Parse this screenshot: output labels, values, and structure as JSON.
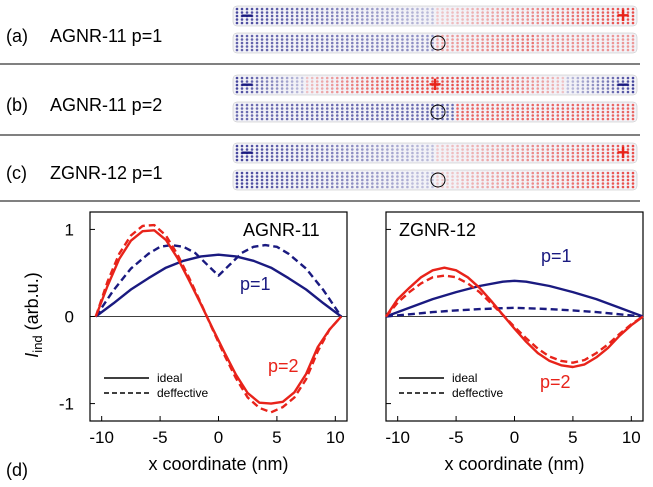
{
  "panels": [
    {
      "tag": "(a)",
      "name": "AGNR-11 p=1",
      "ribbon1": {
        "profile": "antisym",
        "signs": [
          {
            "text": "−",
            "color": "#1a1a80",
            "side": "left"
          },
          {
            "text": "+",
            "color": "#e8231a",
            "side": "right"
          }
        ]
      },
      "ribbon2": {
        "profile": "ring",
        "marker": "circle"
      }
    },
    {
      "tag": "(b)",
      "name": "AGNR-11 p=2",
      "ribbon1": {
        "profile": "sym",
        "signs": [
          {
            "text": "−",
            "color": "#1a1a80",
            "side": "left"
          },
          {
            "text": "+",
            "color": "#e8231a",
            "side": "center"
          },
          {
            "text": "−",
            "color": "#1a1a80",
            "side": "right"
          }
        ]
      },
      "ribbon2": {
        "profile": "half",
        "marker": "circle"
      }
    },
    {
      "tag": "(c)",
      "name": "ZGNR-12 p=1",
      "ribbon1": {
        "profile": "antisym",
        "signs": [
          {
            "text": "−",
            "color": "#1a1a80",
            "side": "left"
          },
          {
            "text": "+",
            "color": "#e8231a",
            "side": "right"
          }
        ]
      },
      "ribbon2": {
        "profile": "antisym_gap",
        "marker": "circle"
      }
    }
  ],
  "panel_d_label": "(d)",
  "y_axis_label_main": "I",
  "y_axis_label_sub": "ind",
  "y_axis_label_rest": " (arb.u.)",
  "chart_data": [
    {
      "type": "line",
      "title": "AGNR-11",
      "xlabel": "x coordinate (nm)",
      "ylabel": "Iind (arb.u.)",
      "xlim": [
        -11,
        11
      ],
      "ylim": [
        -1.2,
        1.2
      ],
      "xticks": [
        "-10",
        "-5",
        "0",
        "5",
        "10"
      ],
      "yticks": [
        "1",
        "0",
        "-1"
      ],
      "legend": {
        "position": "bottom-left",
        "entries": [
          {
            "label": "ideal",
            "style": "solid"
          },
          {
            "label": "deffective",
            "style": "dashed"
          }
        ]
      },
      "annotations": [
        {
          "text": "p=1",
          "color": "#1a1a80"
        },
        {
          "text": "p=2",
          "color": "#e8231a"
        }
      ],
      "series": [
        {
          "label_ref": "p=1 ideal",
          "color": "#1a1a80",
          "style": "solid",
          "x": [
            -10.5,
            -9,
            -7.5,
            -6,
            -4.5,
            -3,
            -1.5,
            0,
            1.5,
            3,
            4.5,
            6,
            7.5,
            9,
            10.5
          ],
          "y": [
            0,
            0.15,
            0.31,
            0.44,
            0.56,
            0.64,
            0.69,
            0.71,
            0.69,
            0.64,
            0.56,
            0.44,
            0.31,
            0.15,
            0
          ]
        },
        {
          "label_ref": "p=1 deffective",
          "color": "#1a1a80",
          "style": "dashed",
          "x": [
            -10.5,
            -9,
            -7.5,
            -6,
            -5,
            -4,
            -3,
            -2,
            -1,
            0,
            1,
            2,
            3,
            4,
            5,
            6,
            7.5,
            9,
            10.5
          ],
          "y": [
            0,
            0.3,
            0.55,
            0.72,
            0.8,
            0.82,
            0.8,
            0.73,
            0.6,
            0.47,
            0.6,
            0.73,
            0.8,
            0.82,
            0.8,
            0.72,
            0.55,
            0.3,
            0
          ]
        },
        {
          "label_ref": "p=2 ideal",
          "color": "#e8231a",
          "style": "solid",
          "x": [
            -10.5,
            -9.5,
            -8.5,
            -7.5,
            -6.5,
            -5.5,
            -4.5,
            -3.5,
            -2.5,
            -1.5,
            -0.5,
            0.5,
            1.5,
            2.5,
            3.5,
            4.5,
            5.5,
            6.5,
            7.5,
            8.5,
            9.5,
            10.5
          ],
          "y": [
            0,
            0.35,
            0.66,
            0.87,
            0.98,
            0.99,
            0.88,
            0.67,
            0.41,
            0.14,
            -0.14,
            -0.41,
            -0.67,
            -0.88,
            -0.99,
            -1.0,
            -0.98,
            -0.87,
            -0.66,
            -0.35,
            -0.15,
            0
          ]
        },
        {
          "label_ref": "p=2 deffective",
          "color": "#e8231a",
          "style": "dashed",
          "x": [
            -10.5,
            -9.5,
            -8.5,
            -7.5,
            -6.5,
            -5.5,
            -4.5,
            -3.5,
            -2.5,
            -1.5,
            -0.5,
            0.5,
            1.5,
            2.5,
            3.5,
            4.5,
            5.5,
            6.5,
            7.5,
            8.5,
            9.5,
            10.5
          ],
          "y": [
            0,
            0.4,
            0.72,
            0.93,
            1.04,
            1.05,
            0.93,
            0.71,
            0.44,
            0.15,
            -0.15,
            -0.44,
            -0.71,
            -0.93,
            -1.05,
            -1.1,
            -1.04,
            -0.93,
            -0.72,
            -0.4,
            -0.15,
            0
          ]
        }
      ]
    },
    {
      "type": "line",
      "title": "ZGNR-12",
      "xlabel": "x coordinate (nm)",
      "ylabel": "",
      "xlim": [
        -11,
        11
      ],
      "ylim": [
        -1.2,
        1.2
      ],
      "xticks": [
        "-10",
        "-5",
        "0",
        "5",
        "10"
      ],
      "yticks": [],
      "legend": {
        "position": "bottom-left",
        "entries": [
          {
            "label": "ideal",
            "style": "solid"
          },
          {
            "label": "deffective",
            "style": "dashed"
          }
        ]
      },
      "annotations": [
        {
          "text": "p=1",
          "color": "#1a1a80"
        },
        {
          "text": "p=2",
          "color": "#e8231a"
        }
      ],
      "series": [
        {
          "label_ref": "p=1 ideal",
          "color": "#1a1a80",
          "style": "solid",
          "x": [
            -11,
            -9,
            -7,
            -5,
            -3,
            -1,
            0,
            1,
            3,
            5,
            7,
            9,
            11
          ],
          "y": [
            0,
            0.1,
            0.2,
            0.28,
            0.35,
            0.4,
            0.41,
            0.4,
            0.35,
            0.28,
            0.2,
            0.1,
            0
          ]
        },
        {
          "label_ref": "p=1 deffective",
          "color": "#1a1a80",
          "style": "dashed",
          "x": [
            -11,
            -9,
            -7,
            -5,
            -3,
            -1,
            0,
            1,
            3,
            5,
            7,
            9,
            11
          ],
          "y": [
            0,
            0.025,
            0.05,
            0.07,
            0.085,
            0.095,
            0.1,
            0.095,
            0.085,
            0.07,
            0.05,
            0.025,
            0
          ]
        },
        {
          "label_ref": "p=2 ideal",
          "color": "#e8231a",
          "style": "solid",
          "x": [
            -11,
            -10,
            -9,
            -8,
            -7,
            -6,
            -5,
            -4,
            -3,
            -2,
            -1,
            0,
            1,
            2,
            3,
            4,
            5,
            6,
            7,
            8,
            9,
            10,
            11
          ],
          "y": [
            0,
            0.2,
            0.33,
            0.45,
            0.53,
            0.56,
            0.53,
            0.45,
            0.33,
            0.18,
            0.02,
            -0.14,
            -0.29,
            -0.42,
            -0.51,
            -0.56,
            -0.58,
            -0.55,
            -0.47,
            -0.36,
            -0.22,
            -0.1,
            0
          ]
        },
        {
          "label_ref": "p=2 deffective",
          "color": "#e8231a",
          "style": "dashed",
          "x": [
            -11,
            -10,
            -9,
            -8,
            -7,
            -6,
            -5,
            -4,
            -3,
            -2,
            -1,
            0,
            1,
            2,
            3,
            4,
            5,
            6,
            7,
            8,
            9,
            10,
            11
          ],
          "y": [
            0,
            0.16,
            0.28,
            0.38,
            0.45,
            0.47,
            0.45,
            0.38,
            0.28,
            0.15,
            0.02,
            -0.12,
            -0.25,
            -0.37,
            -0.46,
            -0.51,
            -0.53,
            -0.5,
            -0.42,
            -0.32,
            -0.2,
            -0.09,
            0
          ]
        }
      ]
    }
  ]
}
